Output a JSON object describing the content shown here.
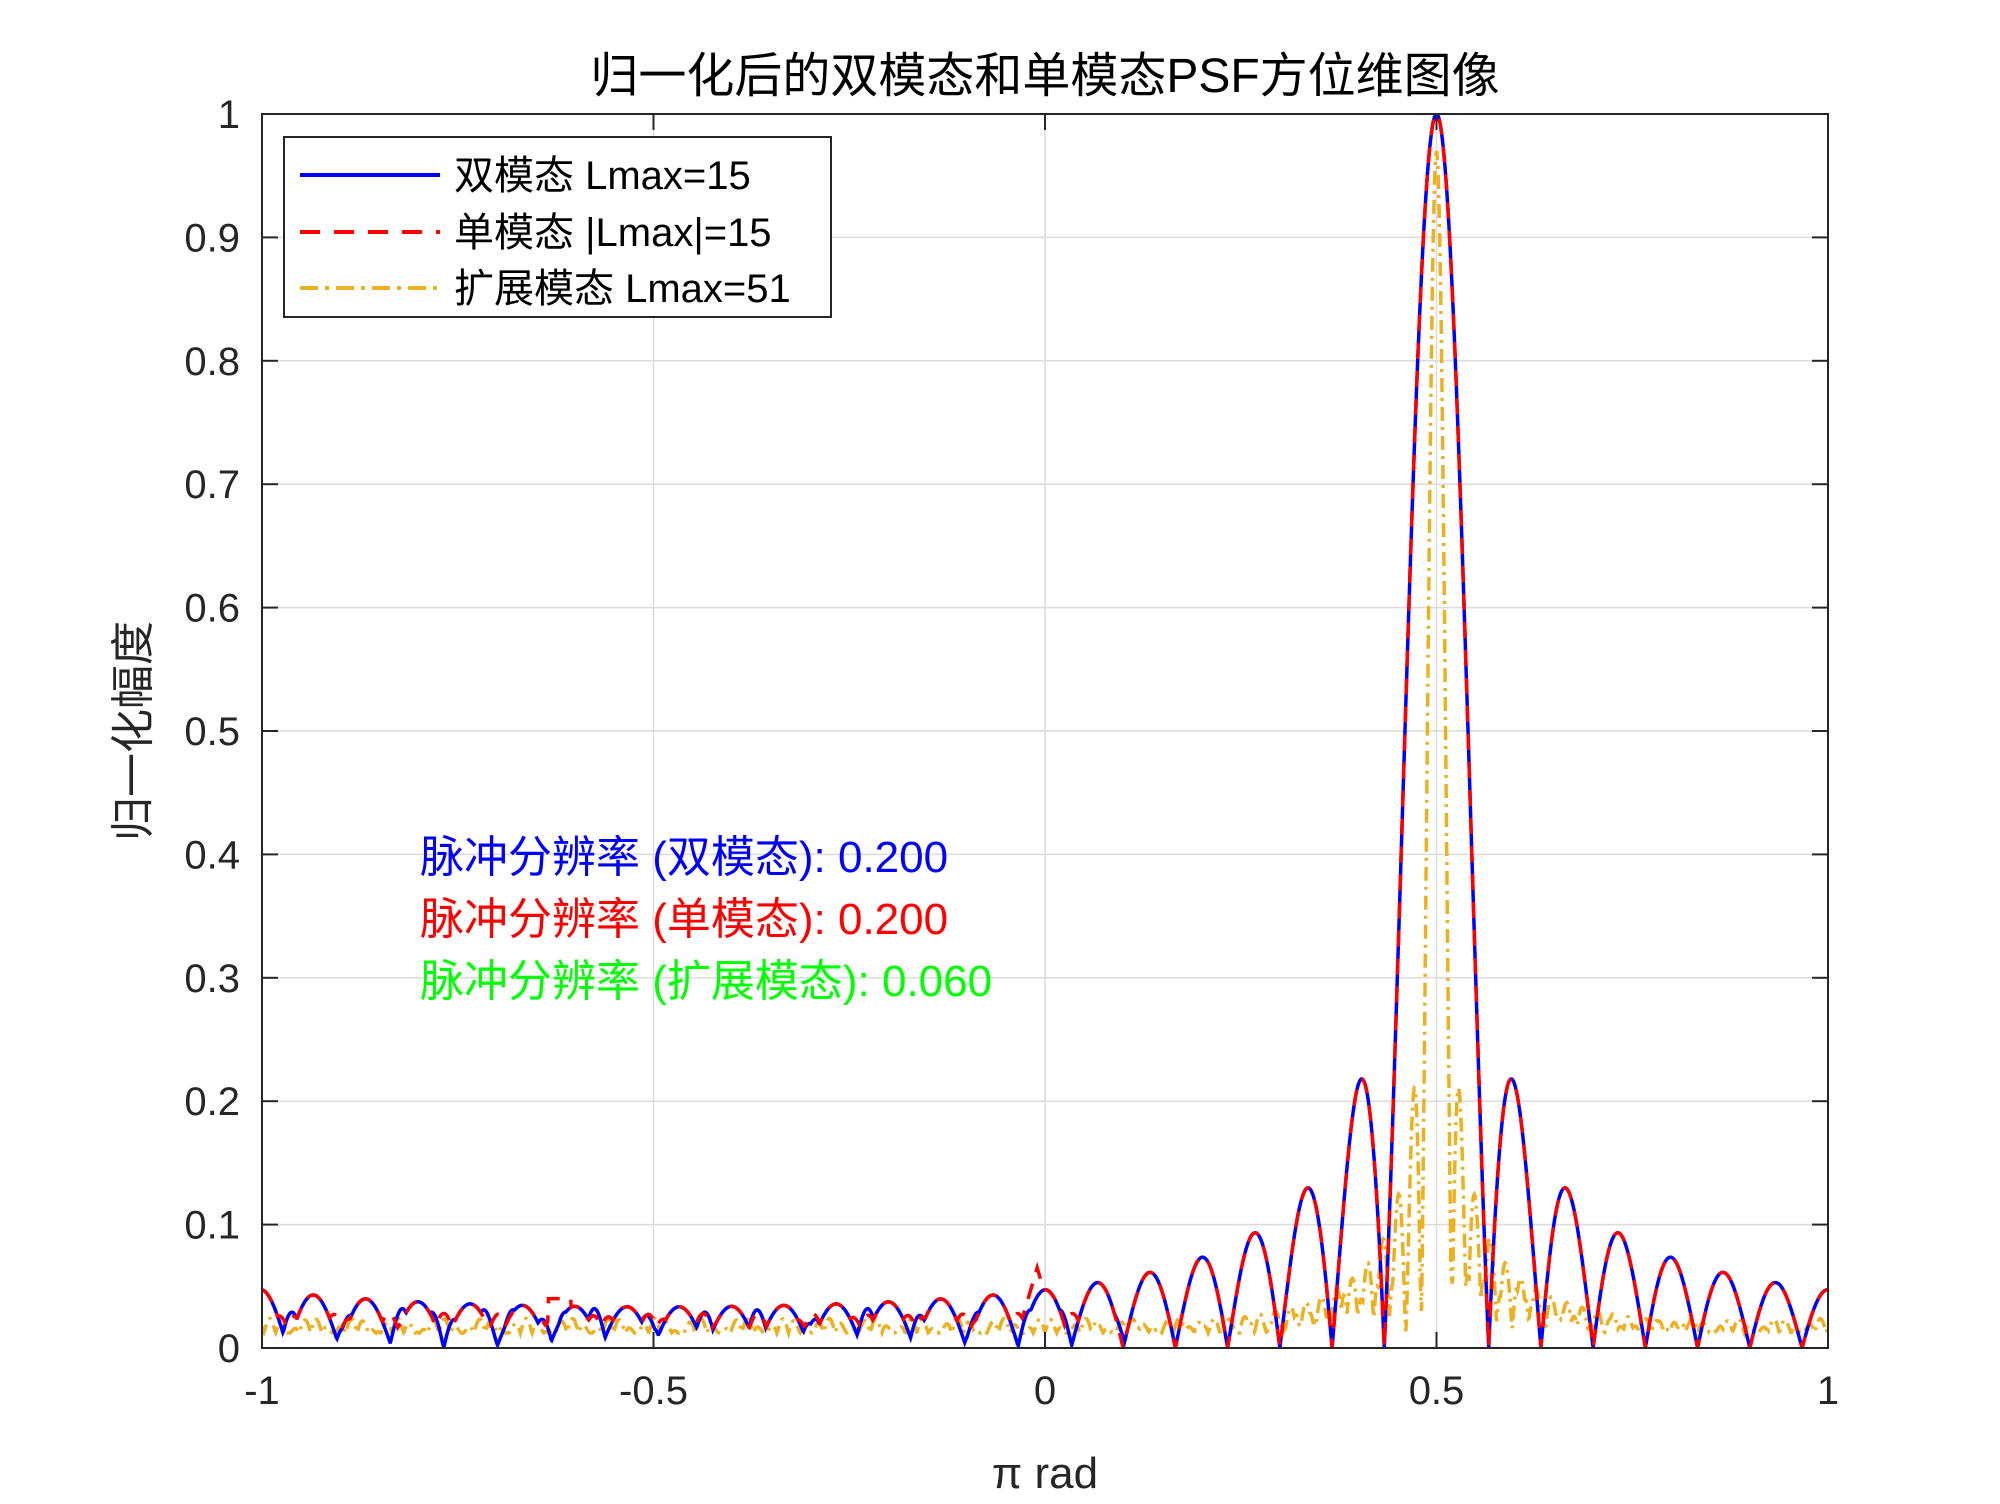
{
  "chart_data": {
    "type": "line",
    "title": "归一化后的双模态和单模态PSF方位维图像",
    "xlabel": "π  rad",
    "ylabel": "归一化幅度",
    "xlim": [
      -1,
      1
    ],
    "ylim": [
      0,
      1
    ],
    "x_ticks": [
      -1,
      -0.5,
      0,
      0.5,
      1
    ],
    "x_tick_labels": [
      "-1",
      "-0.5",
      "0",
      "0.5",
      "1"
    ],
    "y_ticks": [
      0,
      0.1,
      0.2,
      0.3,
      0.4,
      0.5,
      0.6,
      0.7,
      0.8,
      0.9,
      1
    ],
    "y_tick_labels": [
      "0",
      "0.1",
      "0.2",
      "0.3",
      "0.4",
      "0.5",
      "0.6",
      "0.7",
      "0.8",
      "0.9",
      "1"
    ],
    "grid": true,
    "legend_position": "top-left",
    "series": [
      {
        "name": "双模态 Lmax=15",
        "color": "#0000ff",
        "style": "solid",
        "peak_x": 0.5,
        "peak_y": 1.0,
        "first_null_half_width": 0.0667,
        "sidelobe_peaks": [
          {
            "x": 0.4,
            "y": 0.22
          },
          {
            "x": 0.34,
            "y": 0.13
          },
          {
            "x": 0.27,
            "y": 0.09
          },
          {
            "x": 0.2,
            "y": 0.07
          },
          {
            "x": 0.13,
            "y": 0.05
          },
          {
            "x": 0.07,
            "y": 0.05
          },
          {
            "x": 0.0,
            "y": 0.04
          },
          {
            "x": -0.5,
            "y": 0.02
          },
          {
            "x": -1.0,
            "y": 0.02
          }
        ]
      },
      {
        "name": "单模态 |Lmax|=15",
        "color": "#ff0000",
        "style": "dashed",
        "peak_x": 0.5,
        "peak_y": 1.0,
        "first_null_half_width": 0.0667,
        "sidelobe_peaks": [
          {
            "x": 0.4,
            "y": 0.22
          },
          {
            "x": 0.34,
            "y": 0.13
          },
          {
            "x": 0.27,
            "y": 0.09
          },
          {
            "x": -0.01,
            "y": 0.065
          },
          {
            "x": -0.62,
            "y": 0.04
          },
          {
            "x": -0.68,
            "y": 0.035
          }
        ]
      },
      {
        "name": "扩展模态 Lmax=51",
        "color": "#edb120",
        "style": "dashdot",
        "peak_x": 0.5,
        "peak_y": 0.97,
        "first_null_half_width": 0.0196,
        "sidelobe_peaks": [
          {
            "x": 0.47,
            "y": 0.22
          },
          {
            "x": 0.53,
            "y": 0.22
          },
          {
            "x": 0.45,
            "y": 0.1
          },
          {
            "x": 0.56,
            "y": 0.1
          }
        ]
      }
    ],
    "annotations": [
      {
        "text": "脉冲分辨率 (双模态): 0.200",
        "color": "#0000ff"
      },
      {
        "text": "脉冲分辨率 (单模态): 0.200",
        "color": "#ff0000"
      },
      {
        "text": "脉冲分辨率 (扩展模态): 0.060",
        "color": "#00ff00"
      }
    ]
  }
}
